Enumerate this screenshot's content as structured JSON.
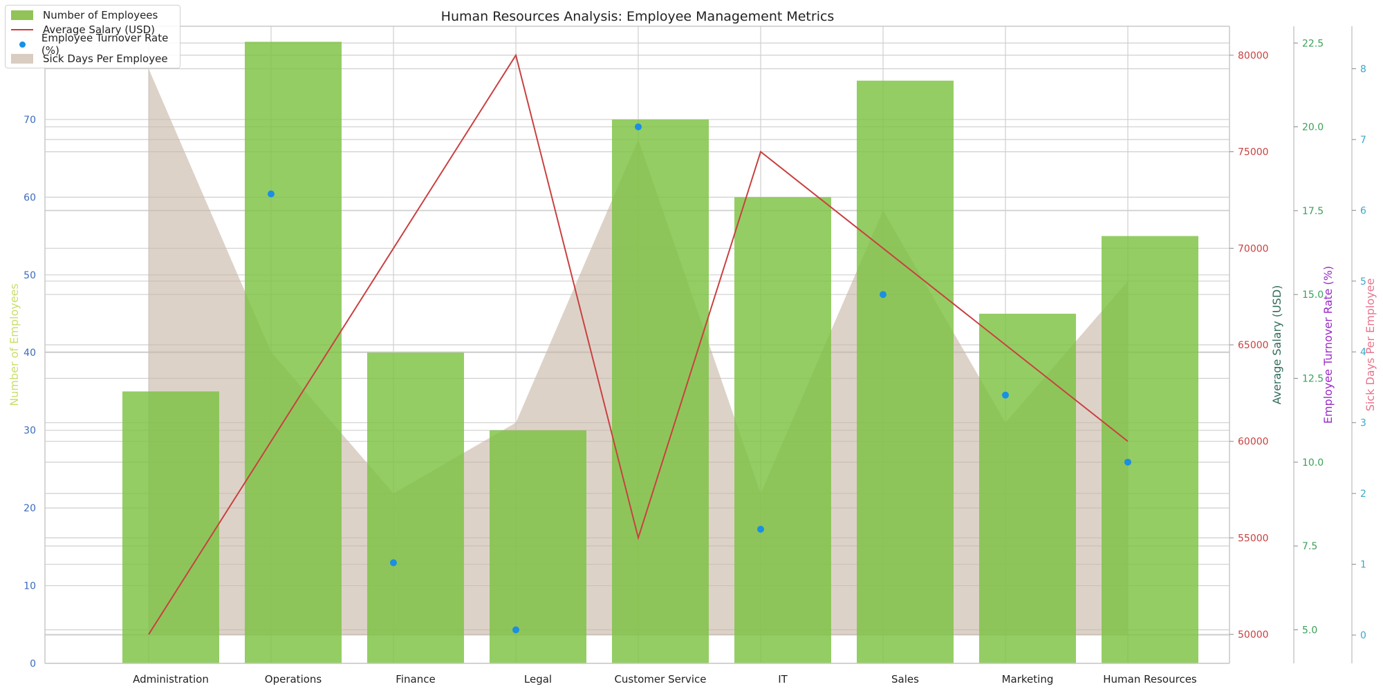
{
  "chart_data": {
    "type": "bar",
    "title": "Human Resources Analysis: Employee Management Metrics",
    "categories": [
      "Administration",
      "Operations",
      "Finance",
      "Legal",
      "Customer Service",
      "IT",
      "Sales",
      "Marketing",
      "Human Resources"
    ],
    "series": [
      {
        "name": "Number of Employees",
        "type": "bar",
        "axis": "left",
        "color": "#8cc63f",
        "values": [
          35,
          80,
          40,
          30,
          70,
          60,
          75,
          45,
          55
        ]
      },
      {
        "name": "Average Salary (USD)",
        "type": "line",
        "axis": "right1",
        "color": "#c94040",
        "values": [
          50000,
          60000,
          70000,
          80000,
          55000,
          75000,
          70000,
          65000,
          60000
        ]
      },
      {
        "name": "Employee Turnover Rate (%)",
        "type": "scatter",
        "axis": "right2",
        "color": "#1f93e0",
        "values": [
          null,
          18.0,
          7.0,
          5.0,
          20.0,
          8.0,
          15.0,
          12.0,
          10.0
        ]
      },
      {
        "name": "Sick Days Per Employee",
        "type": "area",
        "axis": "right3",
        "color": "#c8b6a6",
        "values": [
          8.0,
          4.0,
          2.0,
          3.0,
          7.0,
          2.0,
          6.0,
          3.0,
          5.0
        ]
      }
    ],
    "axes": {
      "left": {
        "label": "Number of Employees",
        "label_color": "#c9de6a",
        "tick_color": "#3a6bbd",
        "ylim": [
          0,
          82
        ],
        "ticks": [
          0,
          10,
          20,
          30,
          40,
          50,
          60,
          70
        ]
      },
      "right1": {
        "label": "Average Salary (USD)",
        "label_color": "#2f6b5a",
        "tick_color": "#c94040",
        "ylim": [
          48500,
          81500
        ],
        "ticks": [
          50000,
          55000,
          60000,
          65000,
          70000,
          75000,
          80000
        ]
      },
      "right2": {
        "label": "Employee Turnover Rate (%)",
        "label_color": "#9b28c8",
        "tick_color": "#3ca05a",
        "ylim": [
          4.0,
          23.0
        ],
        "ticks": [
          "5.0",
          "7.5",
          "10.0",
          "12.5",
          "15.0",
          "17.5",
          "20.0",
          "22.5"
        ]
      },
      "right3": {
        "label": "Sick Days Per Employee",
        "label_color": "#e8738c",
        "tick_color": "#3aa9c9",
        "ylim": [
          -0.4,
          8.6
        ],
        "ticks": [
          0,
          1,
          2,
          3,
          4,
          5,
          6,
          7,
          8
        ]
      }
    },
    "grid": true,
    "legend_position": "top-left"
  },
  "legend": {
    "items": [
      {
        "label": "Number of Employees",
        "kind": "rect"
      },
      {
        "label": "Average Salary (USD)",
        "kind": "line"
      },
      {
        "label": "Employee Turnover Rate (%)",
        "kind": "dot"
      },
      {
        "label": "Sick Days Per Employee",
        "kind": "area"
      }
    ]
  }
}
